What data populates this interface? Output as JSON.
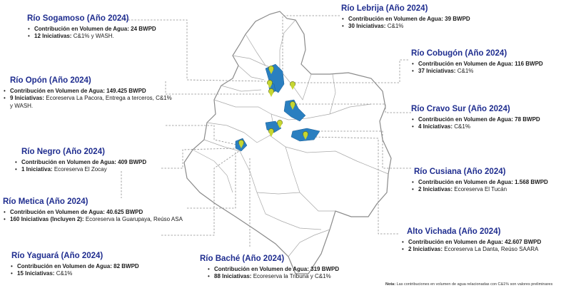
{
  "rivers": [
    {
      "id": "sogamoso",
      "name": "Río Sogamoso (Año 2024)",
      "vol_label": "Contribución en Volumen de Agua:",
      "vol_value": "24 BWPD",
      "ini_label": "12 Iniciativas:",
      "ini_value": "C&1% y WASH."
    },
    {
      "id": "opon",
      "name": "Río Opón (Año 2024)",
      "vol_label": "Contribución en Volumen de Agua:",
      "vol_value": "149.425 BWPD",
      "ini_label": "9 Iniciativas:",
      "ini_value": "Ecoreserva La Pacora, Entrega a terceros, C&1% y WASH."
    },
    {
      "id": "negro",
      "name": "Río Negro (Año 2024)",
      "vol_label": "Contribución en Volumen de Agua:",
      "vol_value": "409 BWPD",
      "ini_label": "1 Iniciativa:",
      "ini_value": "Ecoreserva El Zocay"
    },
    {
      "id": "metica",
      "name": "Río Metica (Año 2024)",
      "vol_label": "Contribución en Volumen de Agua:",
      "vol_value": "40.625 BWPD",
      "ini_label": "160 Iniciativas (Incluyen 2):",
      "ini_value": "Ecoreserva la Guarupaya, Reúso ASA"
    },
    {
      "id": "yaguara",
      "name": "Río Yaguará (Año 2024)",
      "vol_label": "Contribución en Volumen de Agua:",
      "vol_value": "82 BWPD",
      "ini_label": "15 Iniciativas:",
      "ini_value": "C&1%"
    },
    {
      "id": "bache",
      "name": "Río Baché (Año 2024)",
      "vol_label": "Contribución en Volumen de Agua:",
      "vol_value": "319 BWPD",
      "ini_label": "88 Iniciativas:",
      "ini_value": "Ecoreserva la Tribuna y C&1%"
    },
    {
      "id": "lebrija",
      "name": "Río Lebrija (Año 2024)",
      "vol_label": "Contribución en Volumen de Agua:",
      "vol_value": "39 BWPD",
      "ini_label": "30 Iniciativas:",
      "ini_value": "C&1%"
    },
    {
      "id": "cobugon",
      "name": "Río Cobugón (Año 2024)",
      "vol_label": "Contribución en Volumen de Agua:",
      "vol_value": "116 BWPD",
      "ini_label": "37 Iniciativas:",
      "ini_value": "C&1%"
    },
    {
      "id": "cravo",
      "name": "Río Cravo Sur (Año 2024)",
      "vol_label": "Contribución en Volumen de Agua:",
      "vol_value": "78 BWPD",
      "ini_label": "4 Iniciativas:",
      "ini_value": "C&1%"
    },
    {
      "id": "cusiana",
      "name": "Río Cusiana (Año 2024)",
      "vol_label": "Contribución en Volumen de Agua:",
      "vol_value": "1.568 BWPD",
      "ini_label": "2 Iniciativas:",
      "ini_value": "Ecoreserva El Tucán"
    },
    {
      "id": "vichada",
      "name": "Alto Vichada (Año 2024)",
      "vol_label": "Contribución en Volumen de Agua:",
      "vol_value": "42.607 BWPD",
      "ini_label": "2 Iniciativas:",
      "ini_value": "Ecoreserva La Danta, Reúso SAARA"
    }
  ],
  "note": {
    "label": "Nota:",
    "text": "Las contribuciones en volumen de agua relacionadas con C&1% son valores preliminares"
  },
  "colors": {
    "title": "#1f2d8f",
    "basin": "#2a7fc0",
    "pin": "#c6d631",
    "border": "#8a8a8a"
  },
  "icons": {
    "marker": "map-pin-icon"
  }
}
